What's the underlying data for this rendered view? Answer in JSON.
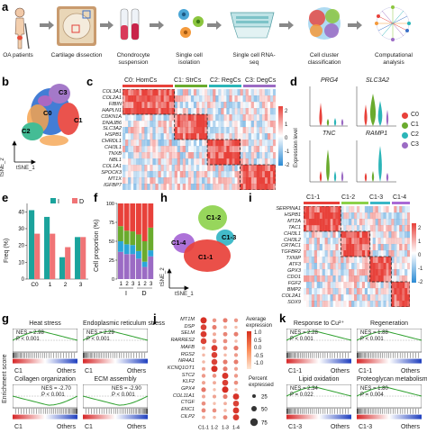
{
  "panels": {
    "a": "a",
    "b": "b",
    "c": "c",
    "d": "d",
    "e": "e",
    "f": "f",
    "g": "g",
    "h": "h",
    "i": "i",
    "j": "j",
    "k": "k"
  },
  "panel_a": {
    "steps": [
      "OA patients",
      "Cartilage dissection",
      "Chondrocyte suspension",
      "Single cell isolation",
      "Single cell RNA-seq",
      "Cell cluster classification",
      "Computational analysis"
    ]
  },
  "panel_b": {
    "clusters": [
      "C0",
      "C1",
      "C2",
      "C3"
    ],
    "xlabel": "tSNE_1",
    "ylabel": "tSNE_2"
  },
  "panel_c": {
    "groups": [
      "C0: HomCs",
      "C1: StrCs",
      "C2: RegCs",
      "C3: DegCs"
    ],
    "group_colors": [
      "#e8413a",
      "#6aab2e",
      "#2bb5b8",
      "#9b6bc4"
    ],
    "genes": [
      "COL3A1",
      "COL2A1",
      "FIBIN",
      "HAPLN1",
      "CDKN1A",
      "DNAJB6",
      "SLC3A2",
      "HSPB1",
      "CHRDL1",
      "CHI3L1",
      "TNXB",
      "NBL1",
      "COL1A1",
      "SPOCK3",
      "MT1X",
      "IGFBP7"
    ],
    "scale": [
      "2",
      "1",
      "0",
      "-1",
      "-2"
    ]
  },
  "panel_d": {
    "genes": [
      "PRG4",
      "SLC3A2",
      "TNC",
      "RAMP1"
    ],
    "ylabel": "Expression level",
    "legend": [
      "C0",
      "C1",
      "C2",
      "C3"
    ]
  },
  "panel_e": {
    "ylabel": "Freq (%)",
    "legend": [
      "I",
      "D"
    ],
    "yticks": [
      "0",
      "10",
      "20",
      "30",
      "40"
    ],
    "xticks": [
      "C0",
      "1",
      "2",
      "3"
    ]
  },
  "panel_f": {
    "ylabel": "Cell proportion (%)",
    "yticks": [
      "0",
      "25",
      "50",
      "75",
      "100"
    ],
    "xticks": [
      "1",
      "2",
      "3",
      "1",
      "2",
      "3"
    ],
    "groups": [
      "I",
      "D"
    ]
  },
  "panel_h": {
    "subclusters": [
      "C1-1",
      "C1-2",
      "C1-3",
      "C1-4"
    ],
    "xlabel": "tSNE_1",
    "ylabel": "tSNE_2"
  },
  "panel_i": {
    "groups": [
      "C1-1",
      "C1-2",
      "C1-3",
      "C1-4"
    ],
    "genes": [
      "SERPINA1",
      "HSPB1",
      "MT2A",
      "TAC1",
      "CHI3L1",
      "CHI3L2",
      "CRTAC1",
      "TGFBR2",
      "TXNIP",
      "ATF3",
      "GPX3",
      "CDO1",
      "FGF2",
      "BMP2",
      "COL2A1",
      "SOX9"
    ],
    "scale": [
      "2",
      "1",
      "0",
      "-1",
      "-2"
    ]
  },
  "panel_g": {
    "ylabel": "Enrichment score",
    "plots": [
      {
        "title": "Heat stress",
        "nes": "NES = 2.98",
        "p": "P < 0.001",
        "left": "C1",
        "right": "Others"
      },
      {
        "title": "Endoplasmic reticulum stress",
        "nes": "NES = 2.29",
        "p": "P < 0.001",
        "left": "C1",
        "right": "Others"
      },
      {
        "title": "Collagen organization",
        "nes": "NES = -2.70",
        "p": "P < 0.001",
        "left": "C1",
        "right": "Others"
      },
      {
        "title": "ECM assembly",
        "nes": "NES = -2.90",
        "p": "P < 0.001",
        "left": "C1",
        "right": "Others"
      }
    ]
  },
  "panel_j": {
    "genes": [
      "MT1M",
      "DSP",
      "SELM",
      "RARRES2",
      "MAFB",
      "RGS2",
      "NR4A1",
      "KCNQ1OT1",
      "STC2",
      "KLF2",
      "GPX4",
      "COL11A1",
      "CTGF",
      "ENC1",
      "CILP2"
    ],
    "xticks": [
      "C1-1",
      "1-2",
      "1-3",
      "1-4"
    ],
    "legend_avg_title": "Average expression",
    "legend_avg_ticks": [
      "1.0",
      "0.5",
      "0.0",
      "-0.5",
      "-1.0"
    ],
    "legend_pct_title": "Percent expressed",
    "legend_pct_values": [
      "25",
      "50",
      "75"
    ]
  },
  "panel_k": {
    "plots": [
      {
        "title": "Response to Cu²⁺",
        "nes": "NES = 2.28",
        "p": "P < 0.001",
        "left": "C1-1",
        "right": "Others"
      },
      {
        "title": "Regeneration",
        "nes": "NES = 1.88",
        "p": "P < 0.001",
        "left": "C1-1",
        "right": "Others"
      },
      {
        "title": "Lipid oxidation",
        "nes": "NES = 2.34",
        "p": "P = 0.022",
        "left": "C1-3",
        "right": "Others"
      },
      {
        "title": "Proteoglycan metabolism",
        "nes": "NES = 1.80",
        "p": "P = 0.004",
        "left": "C1-3",
        "right": "Others"
      }
    ]
  },
  "chart_data": [
    {
      "type": "bar",
      "panel": "e",
      "ylabel": "Freq (%)",
      "categories": [
        "C0",
        "1",
        "2",
        "3"
      ],
      "series": [
        {
          "name": "I",
          "values": [
            41,
            37,
            13,
            25
          ]
        },
        {
          "name": "D",
          "values": [
            27,
            27,
            19,
            25
          ]
        }
      ],
      "ylim": [
        0,
        45
      ],
      "colors": {
        "I": "#1ba39c",
        "D": "#f07476"
      }
    },
    {
      "type": "bar",
      "panel": "f",
      "ylabel": "Cell proportion (%)",
      "categories": [
        "1",
        "2",
        "3",
        "1",
        "2",
        "3"
      ],
      "series": [
        {
          "name": "C0",
          "values": [
            30,
            36,
            37,
            41,
            50,
            32
          ]
        },
        {
          "name": "C1",
          "values": [
            20,
            18,
            18,
            22,
            27,
            30
          ]
        },
        {
          "name": "C2",
          "values": [
            14,
            13,
            12,
            10,
            7,
            8
          ]
        },
        {
          "name": "C3",
          "values": [
            36,
            33,
            33,
            27,
            16,
            30
          ]
        }
      ],
      "ylim": [
        0,
        100
      ],
      "colors": {
        "C0": "#e8413a",
        "C1": "#6aab2e",
        "C2": "#2ba6d9",
        "C3": "#9b6bc4"
      }
    }
  ]
}
